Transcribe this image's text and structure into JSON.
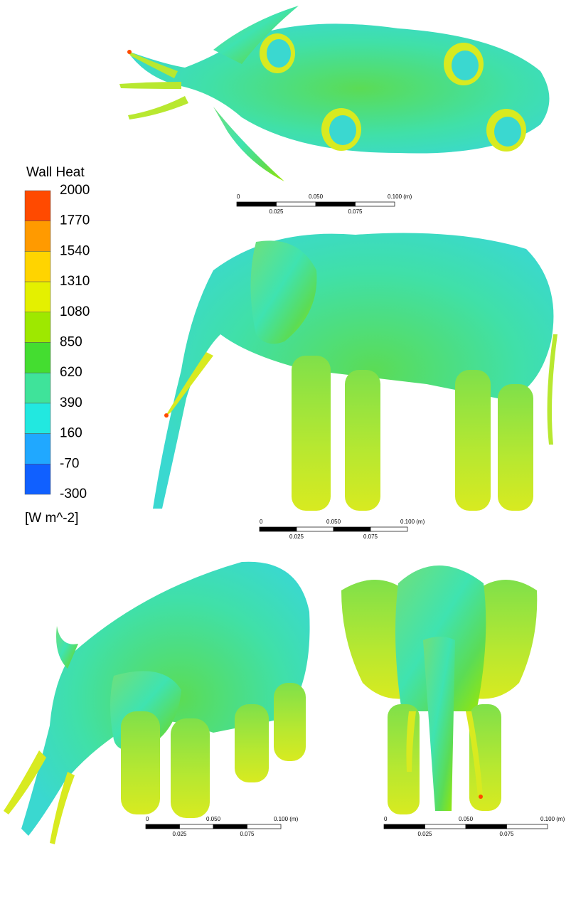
{
  "legend": {
    "title": "Wall Heat",
    "levels": [
      "2000",
      "1770",
      "1540",
      "1310",
      "1080",
      "850",
      "620",
      "390",
      "160",
      "-70",
      "-300"
    ],
    "colors": [
      "#ff4a00",
      "#ff9a00",
      "#ffd400",
      "#e4f000",
      "#9ee800",
      "#44dd30",
      "#3fe39a",
      "#22e8e0",
      "#20a8ff",
      "#1060ff"
    ],
    "unit": "[W m^-2]"
  },
  "scale_bars": [
    {
      "top": [
        "0",
        "0.050",
        "0.100 (m)"
      ],
      "bottom": [
        "0.025",
        "0.075"
      ]
    },
    {
      "top": [
        "0",
        "0.050",
        "0.100 (m)"
      ],
      "bottom": [
        "0.025",
        "0.075"
      ]
    },
    {
      "top": [
        "0",
        "0.050",
        "0.100 (m)"
      ],
      "bottom": [
        "0.025",
        "0.075"
      ]
    },
    {
      "top": [
        "0",
        "0.050",
        "0.100 (m)"
      ],
      "bottom": [
        "0.025",
        "0.075"
      ]
    }
  ]
}
